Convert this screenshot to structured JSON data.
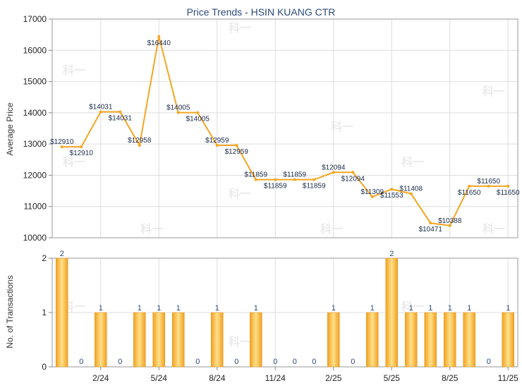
{
  "chart_data": [
    {
      "type": "line",
      "title": "Price Trends - HSIN KUANG CTR",
      "ylabel": "Average Price",
      "ylim": [
        10000,
        17000
      ],
      "yticks": [
        "10000",
        "11000",
        "12000",
        "13000",
        "14000",
        "15000",
        "16000",
        "17000"
      ],
      "grid": true,
      "series": [
        {
          "values": [
            12910,
            12910,
            14031,
            14031,
            12958,
            16440,
            14005,
            14005,
            12959,
            12959,
            11859,
            11859,
            11859,
            11859,
            12094,
            12094,
            11309,
            11553,
            11408,
            10471,
            10388,
            11650,
            11650,
            11650
          ],
          "labels": [
            "$12910",
            "$12910",
            "$14031",
            "$14031",
            "$12958",
            "$16440",
            "$14005",
            "$14005",
            "$12959",
            "$12959",
            "$11859",
            "$11859",
            "$11859",
            "$11859",
            "$12094",
            "$12094",
            "$11309",
            "$11553",
            "$11408",
            "$10471",
            "$10388",
            "$11650",
            "$11650",
            "$11650"
          ]
        }
      ],
      "color": "#F5A623"
    },
    {
      "type": "bar",
      "ylabel": "No. of Transactions",
      "ylim": [
        0,
        2
      ],
      "yticks": [
        "0",
        "1",
        "2"
      ],
      "values": [
        2,
        0,
        1,
        0,
        1,
        1,
        1,
        0,
        1,
        0,
        1,
        0,
        0,
        0,
        1,
        0,
        1,
        2,
        1,
        1,
        1,
        1,
        0,
        1
      ],
      "xtick_labels": [
        "2/24",
        "5/24",
        "8/24",
        "11/24",
        "2/25",
        "5/25",
        "8/25",
        "11/25"
      ],
      "color": "#F5A623"
    }
  ],
  "watermark": "科一"
}
